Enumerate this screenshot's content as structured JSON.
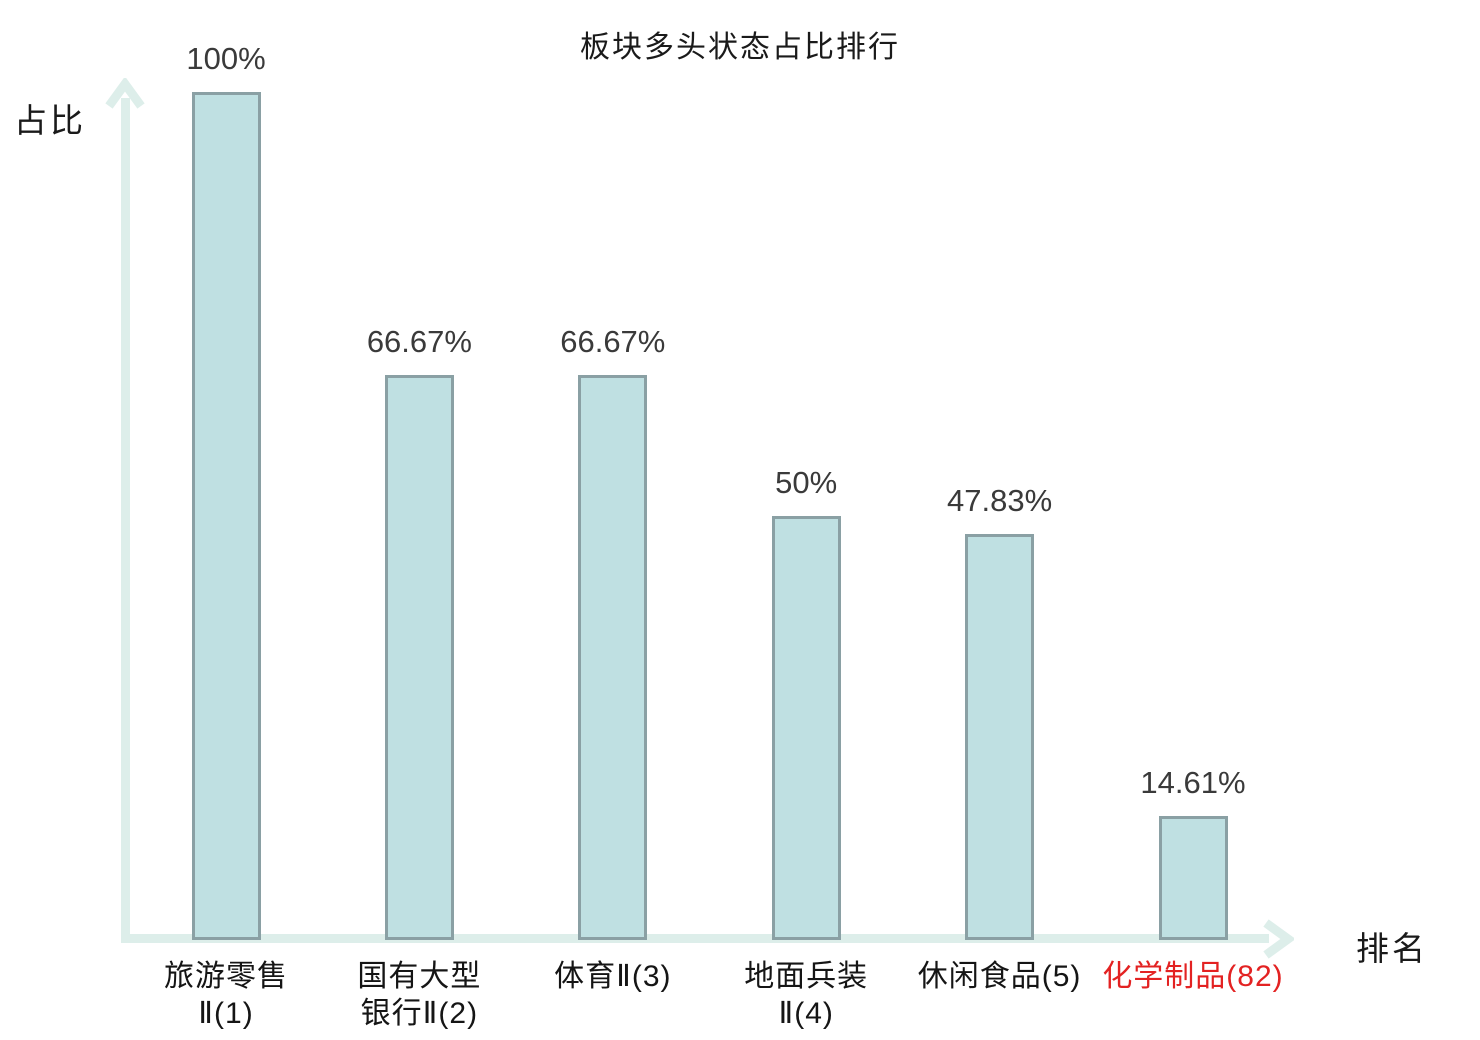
{
  "title": "板块多头状态占比排行",
  "axes": {
    "y_label": "占比",
    "x_label": "排名"
  },
  "colors": {
    "bar_fill": "#bfe0e2",
    "bar_border": "#8aa0a4",
    "axis": "#ddeeea",
    "value_text": "#3a3a3a",
    "label_text": "#151515",
    "highlight_text": "#e32222"
  },
  "chart_data": {
    "type": "bar",
    "title": "板块多头状态占比排行",
    "xlabel": "排名",
    "ylabel": "占比",
    "ylim": [
      0,
      100
    ],
    "grid": false,
    "legend": "none",
    "categories": [
      "旅游零售Ⅱ(1)",
      "国有大型银行Ⅱ(2)",
      "体育Ⅱ(3)",
      "地面兵装Ⅱ(4)",
      "休闲食品(5)",
      "化学制品(82)"
    ],
    "values": [
      100,
      66.67,
      66.67,
      50,
      47.83,
      14.61
    ],
    "bars": [
      {
        "category": "旅游零售Ⅱ(1)",
        "label_lines": [
          "旅游零售",
          "Ⅱ(1)"
        ],
        "value": 100,
        "value_label": "100%",
        "highlight": false
      },
      {
        "category": "国有大型银行Ⅱ(2)",
        "label_lines": [
          "国有大型",
          "银行Ⅱ(2)"
        ],
        "value": 66.67,
        "value_label": "66.67%",
        "highlight": false
      },
      {
        "category": "体育Ⅱ(3)",
        "label_lines": [
          "体育Ⅱ(3)"
        ],
        "value": 66.67,
        "value_label": "66.67%",
        "highlight": false
      },
      {
        "category": "地面兵装Ⅱ(4)",
        "label_lines": [
          "地面兵装",
          "Ⅱ(4)"
        ],
        "value": 50,
        "value_label": "50%",
        "highlight": false
      },
      {
        "category": "休闲食品(5)",
        "label_lines": [
          "休闲食品(5)"
        ],
        "value": 47.83,
        "value_label": "47.83%",
        "highlight": false
      },
      {
        "category": "化学制品(82)",
        "label_lines": [
          "化学制品(82)"
        ],
        "value": 14.61,
        "value_label": "14.61%",
        "highlight": true
      }
    ]
  }
}
